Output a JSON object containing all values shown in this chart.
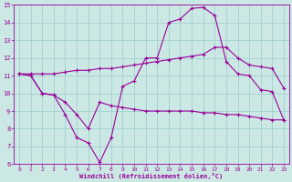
{
  "bg_color": "#cce8e4",
  "grid_color": "#99cccc",
  "line_color": "#990099",
  "xlabel": "Windchill (Refroidissement éolien,°C)",
  "xlim": [
    -0.5,
    23.5
  ],
  "ylim": [
    6,
    15
  ],
  "xticks": [
    0,
    1,
    2,
    3,
    4,
    5,
    6,
    7,
    8,
    9,
    10,
    11,
    12,
    13,
    14,
    15,
    16,
    17,
    18,
    19,
    20,
    21,
    22,
    23
  ],
  "yticks": [
    6,
    7,
    8,
    9,
    10,
    11,
    12,
    13,
    14,
    15
  ],
  "line1_x": [
    0,
    1,
    2,
    3,
    4,
    5,
    6,
    7,
    8,
    9,
    10,
    11,
    12,
    13,
    14,
    15,
    16,
    17,
    18,
    19,
    20,
    21,
    22,
    23
  ],
  "line1_y": [
    11.1,
    11.0,
    10.0,
    9.9,
    8.8,
    7.5,
    7.2,
    6.1,
    7.5,
    10.4,
    10.7,
    12.0,
    12.0,
    14.0,
    14.2,
    14.8,
    14.85,
    14.4,
    11.8,
    11.1,
    11.0,
    10.2,
    10.1,
    8.5
  ],
  "line2_x": [
    0,
    1,
    2,
    3,
    4,
    5,
    6,
    7,
    8,
    9,
    10,
    11,
    12,
    13,
    14,
    15,
    16,
    17,
    18,
    19,
    20,
    21,
    22,
    23
  ],
  "line2_y": [
    11.1,
    11.0,
    10.0,
    9.9,
    9.5,
    8.8,
    8.0,
    9.5,
    9.3,
    9.2,
    9.1,
    9.0,
    9.0,
    9.0,
    9.0,
    9.0,
    8.9,
    8.9,
    8.8,
    8.8,
    8.7,
    8.6,
    8.5,
    8.5
  ],
  "line3_x": [
    0,
    1,
    2,
    3,
    4,
    5,
    6,
    7,
    8,
    9,
    10,
    11,
    12,
    13,
    14,
    15,
    16,
    17,
    18,
    19,
    20,
    21,
    22,
    23
  ],
  "line3_y": [
    11.1,
    11.1,
    11.1,
    11.1,
    11.2,
    11.3,
    11.3,
    11.4,
    11.4,
    11.5,
    11.6,
    11.7,
    11.8,
    11.9,
    12.0,
    12.1,
    12.2,
    12.6,
    12.6,
    12.0,
    11.6,
    11.5,
    11.4,
    10.3
  ],
  "tick_fs": 4.5,
  "xlabel_fs": 5.0
}
